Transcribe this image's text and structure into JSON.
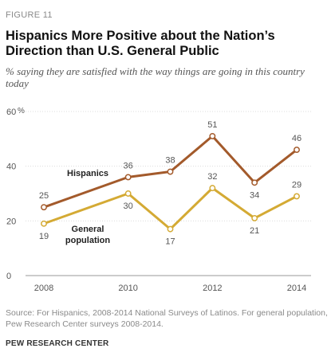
{
  "figure_label": "FIGURE 11",
  "title": "Hispanics More Positive about the Nation’s Direction than U.S. General Public",
  "subtitle": "% saying they are satisfied with the way things are going in this country today",
  "source": "Source: For Hispanics, 2008-2014 National Surveys of Latinos. For general population, Pew Research Center surveys 2008-2014.",
  "organization": "PEW RESEARCH CENTER",
  "chart_data": {
    "type": "line",
    "x": [
      2008,
      2010,
      2011,
      2012,
      2013,
      2014
    ],
    "xticks": [
      "2008",
      "2010",
      "2012",
      "2014"
    ],
    "yticks": [
      "0",
      "20",
      "40",
      "60"
    ],
    "yunit": "%",
    "ylim": [
      0,
      60
    ],
    "grid": "horizontal",
    "series": [
      {
        "name": "Hispanics",
        "values": [
          25,
          36,
          38,
          51,
          34,
          46
        ],
        "color": "#a35a2b"
      },
      {
        "name": "General population",
        "values": [
          19,
          30,
          17,
          32,
          21,
          29
        ],
        "color": "#d4aa34"
      }
    ]
  }
}
